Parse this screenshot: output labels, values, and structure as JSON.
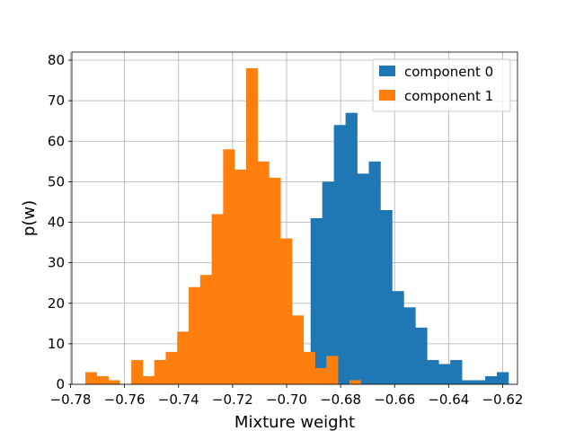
{
  "chart_data": {
    "type": "bar",
    "xlabel": "Mixture weight",
    "ylabel": "p(w)",
    "xlim": [
      -0.7795,
      -0.6145
    ],
    "ylim": [
      0,
      82
    ],
    "grid": true,
    "legend_position": "top-right",
    "x_ticks": [
      {
        "value": -0.78,
        "label": "−0.78"
      },
      {
        "value": -0.76,
        "label": "−0.76"
      },
      {
        "value": -0.74,
        "label": "−0.74"
      },
      {
        "value": -0.72,
        "label": "−0.72"
      },
      {
        "value": -0.7,
        "label": "−0.70"
      },
      {
        "value": -0.68,
        "label": "−0.68"
      },
      {
        "value": -0.66,
        "label": "−0.66"
      },
      {
        "value": -0.64,
        "label": "−0.64"
      },
      {
        "value": -0.62,
        "label": "−0.62"
      }
    ],
    "y_ticks": [
      {
        "value": 0,
        "label": "0"
      },
      {
        "value": 10,
        "label": "10"
      },
      {
        "value": 20,
        "label": "20"
      },
      {
        "value": 30,
        "label": "30"
      },
      {
        "value": 40,
        "label": "40"
      },
      {
        "value": 50,
        "label": "50"
      },
      {
        "value": 60,
        "label": "60"
      },
      {
        "value": 70,
        "label": "70"
      },
      {
        "value": 80,
        "label": "80"
      }
    ],
    "series": [
      {
        "name": "component 0",
        "color": "#1f77b4",
        "bin_width": 0.00431,
        "bin_start": -0.6911,
        "values": [
          41,
          50,
          64,
          67,
          52,
          55,
          43,
          23,
          19,
          14,
          6,
          5,
          6,
          1,
          1,
          2,
          3
        ]
      },
      {
        "name": "component 1",
        "color": "#ff7f0e",
        "bin_width": 0.00425,
        "bin_start": -0.7745,
        "values": [
          3,
          2,
          1,
          0,
          6,
          2,
          6,
          8,
          13,
          24,
          27,
          42,
          58,
          53,
          78,
          55,
          51,
          36,
          17,
          8,
          4,
          7,
          0,
          1
        ]
      }
    ]
  }
}
